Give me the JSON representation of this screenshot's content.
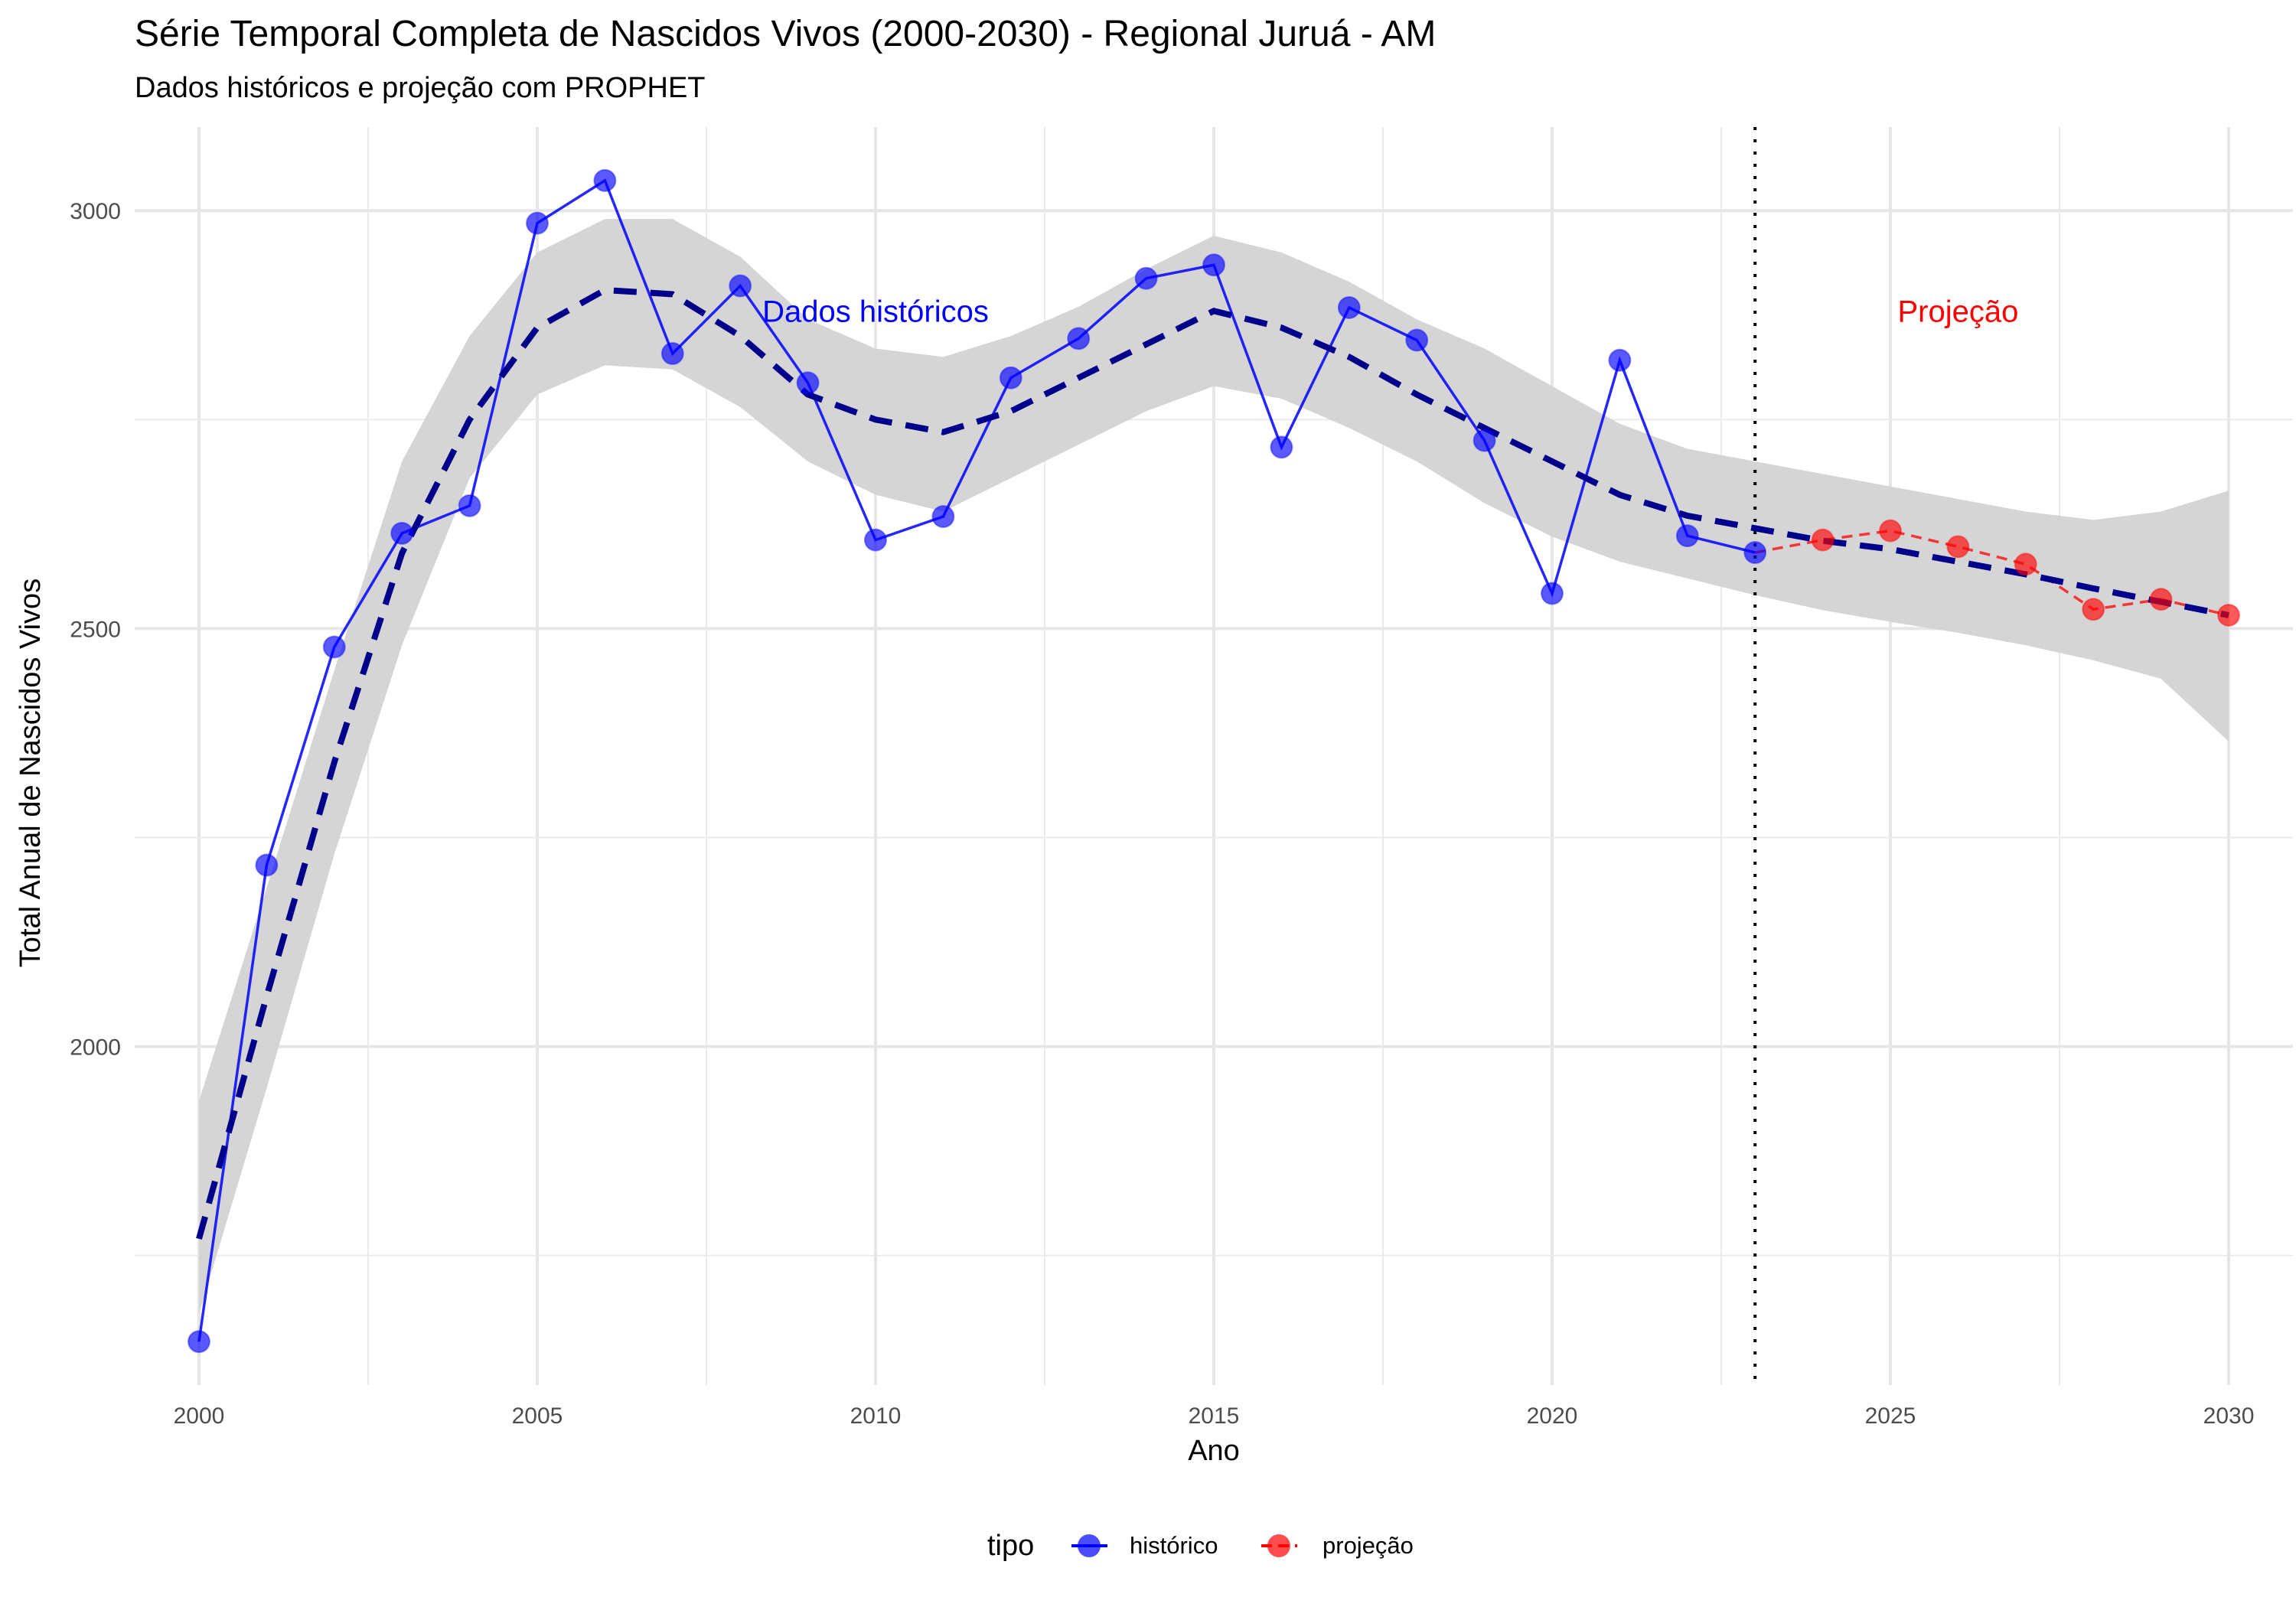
{
  "chart_data": {
    "type": "line",
    "title": "Série Temporal Completa de Nascidos Vivos (2000-2030) -  Regional Juruá - AM",
    "subtitle": "Dados históricos e projeção com PROPHET",
    "xlabel": "Ano",
    "ylabel": "Total Anual de Nascidos Vivos",
    "xlim": [
      1999.05,
      2030.95
    ],
    "ylim": [
      1595,
      3100
    ],
    "x_ticks": [
      2000,
      2005,
      2010,
      2015,
      2020,
      2025,
      2030
    ],
    "y_ticks": [
      2000,
      2500,
      3000
    ],
    "grid": true,
    "cutoff_year": 2023,
    "legend": {
      "position": "bottom",
      "title": "tipo",
      "items": [
        {
          "label": "histórico",
          "color": "#0000ff"
        },
        {
          "label": "projeção",
          "color": "#ff0000"
        }
      ]
    },
    "annotations": [
      {
        "text": "Dados históricos",
        "x": 2010,
        "y": 2880,
        "color": "#0000ff"
      },
      {
        "text": "Projeção",
        "x": 2026,
        "y": 2880,
        "color": "#ff0000"
      }
    ],
    "series": [
      {
        "name": "histórico",
        "color": "#0000ff",
        "x": [
          2000,
          2001,
          2002,
          2003,
          2004,
          2005,
          2006,
          2007,
          2008,
          2009,
          2010,
          2011,
          2012,
          2013,
          2014,
          2015,
          2016,
          2017,
          2018,
          2019,
          2020,
          2021,
          2022,
          2023
        ],
        "y": [
          1647,
          2217,
          2478,
          2614,
          2647,
          2985,
          3036,
          2829,
          2910,
          2794,
          2606,
          2634,
          2800,
          2847,
          2919,
          2935,
          2717,
          2884,
          2845,
          2725,
          2542,
          2821,
          2611,
          2591
        ]
      },
      {
        "name": "projeção",
        "color": "#ff0000",
        "x": [
          2023,
          2024,
          2025,
          2026,
          2027,
          2028,
          2029,
          2030
        ],
        "y": [
          2591,
          2606,
          2617,
          2598,
          2577,
          2523,
          2535,
          2516
        ]
      }
    ],
    "trend": {
      "color": "#00008b",
      "x": [
        2000,
        2001,
        2002,
        2003,
        2004,
        2005,
        2006,
        2007,
        2008,
        2009,
        2010,
        2011,
        2012,
        2013,
        2014,
        2015,
        2016,
        2017,
        2018,
        2019,
        2020,
        2021,
        2022,
        2023,
        2024,
        2025,
        2026,
        2027,
        2028,
        2029,
        2030
      ],
      "y": [
        1770,
        2060,
        2340,
        2590,
        2750,
        2860,
        2905,
        2900,
        2850,
        2780,
        2750,
        2735,
        2760,
        2800,
        2840,
        2880,
        2860,
        2825,
        2780,
        2740,
        2700,
        2660,
        2635,
        2620,
        2605,
        2595,
        2580,
        2565,
        2548,
        2532,
        2516
      ]
    },
    "confidence_band": {
      "color": "#d3d3d3",
      "x": [
        2000,
        2001,
        2002,
        2003,
        2004,
        2005,
        2006,
        2007,
        2008,
        2009,
        2010,
        2011,
        2012,
        2013,
        2014,
        2015,
        2016,
        2017,
        2018,
        2019,
        2020,
        2021,
        2022,
        2023,
        2024,
        2025,
        2026,
        2027,
        2028,
        2029,
        2030
      ],
      "lower": [
        1680,
        1950,
        2230,
        2480,
        2680,
        2780,
        2815,
        2810,
        2765,
        2700,
        2660,
        2640,
        2680,
        2720,
        2760,
        2790,
        2775,
        2740,
        2700,
        2650,
        2610,
        2580,
        2560,
        2540,
        2522,
        2508,
        2495,
        2480,
        2462,
        2440,
        2365
      ],
      "upper": [
        1935,
        2190,
        2450,
        2700,
        2850,
        2950,
        2990,
        2990,
        2945,
        2870,
        2835,
        2825,
        2850,
        2885,
        2930,
        2970,
        2950,
        2915,
        2870,
        2835,
        2790,
        2745,
        2715,
        2700,
        2685,
        2670,
        2655,
        2640,
        2630,
        2640,
        2665
      ]
    }
  }
}
